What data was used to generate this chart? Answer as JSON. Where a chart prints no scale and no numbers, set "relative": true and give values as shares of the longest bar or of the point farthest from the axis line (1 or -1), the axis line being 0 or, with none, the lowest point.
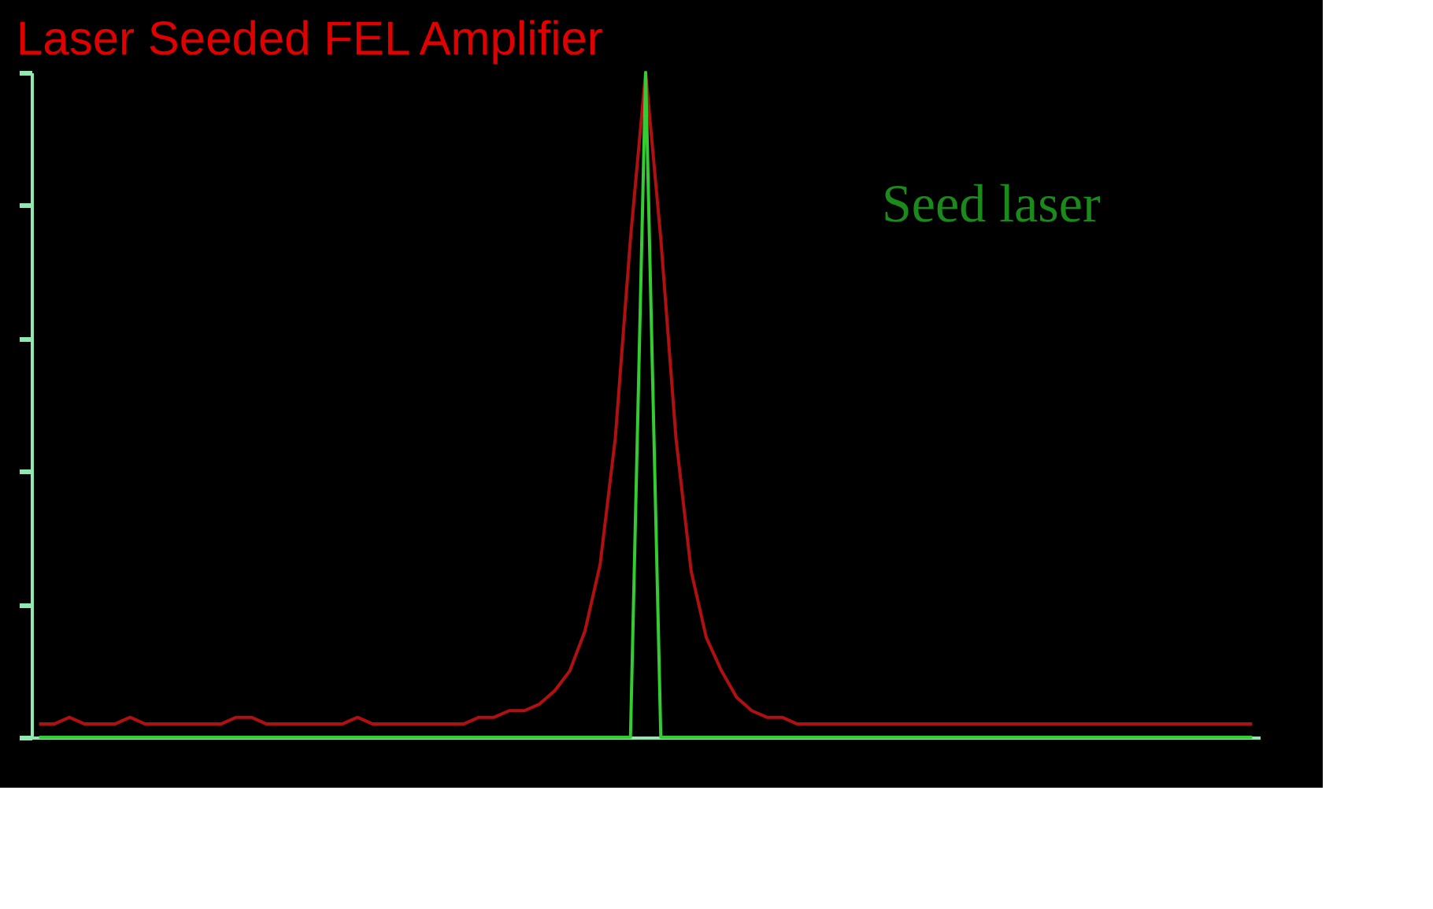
{
  "chart_data": {
    "type": "line",
    "title": "Laser Seeded FEL Amplifier",
    "relative": true,
    "categories": [
      null,
      null,
      null,
      null,
      null,
      null,
      null,
      null,
      null,
      null,
      null,
      null,
      null,
      null,
      null,
      null,
      null,
      null,
      null,
      null,
      null,
      null,
      null,
      null,
      null,
      null,
      null,
      null,
      null,
      null,
      null,
      null,
      null,
      null,
      null,
      null,
      null,
      null,
      null,
      null,
      null,
      null,
      null,
      null,
      null,
      null,
      null,
      null,
      null,
      null,
      null,
      null,
      null,
      null,
      null,
      null,
      null,
      null,
      null,
      null,
      null,
      null,
      null,
      null,
      null,
      null,
      null,
      null,
      null,
      null,
      null,
      null,
      null,
      null,
      null,
      null,
      null,
      null,
      null,
      null,
      null
    ],
    "series": [
      {
        "color": "#b01010",
        "values": [
          0.02,
          0.02,
          0.03,
          0.02,
          0.02,
          0.02,
          0.03,
          0.02,
          0.02,
          0.02,
          0.02,
          0.02,
          0.02,
          0.03,
          0.03,
          0.02,
          0.02,
          0.02,
          0.02,
          0.02,
          0.02,
          0.03,
          0.02,
          0.02,
          0.02,
          0.02,
          0.02,
          0.02,
          0.02,
          0.03,
          0.03,
          0.04,
          0.04,
          0.05,
          0.07,
          0.1,
          0.16,
          0.26,
          0.45,
          0.75,
          1.0,
          0.75,
          0.45,
          0.25,
          0.15,
          0.1,
          0.06,
          0.04,
          0.03,
          0.03,
          0.02,
          0.02,
          0.02,
          0.02,
          0.02,
          0.02,
          0.02,
          0.02,
          0.02,
          0.02,
          0.02,
          0.02,
          0.02,
          0.02,
          0.02,
          0.02,
          0.02,
          0.02,
          0.02,
          0.02,
          0.02,
          0.02,
          0.02,
          0.02,
          0.02,
          0.02,
          0.02,
          0.02,
          0.02,
          0.02,
          0.02
        ]
      },
      {
        "name": "Seed laser",
        "color": "#33cc33",
        "values": [
          0,
          0,
          0,
          0,
          0,
          0,
          0,
          0,
          0,
          0,
          0,
          0,
          0,
          0,
          0,
          0,
          0,
          0,
          0,
          0,
          0,
          0,
          0,
          0,
          0,
          0,
          0,
          0,
          0,
          0,
          0,
          0,
          0,
          0,
          0,
          0,
          0,
          0,
          0,
          0,
          1.0,
          0,
          0,
          0,
          0,
          0,
          0,
          0,
          0,
          0,
          0,
          0,
          0,
          0,
          0,
          0,
          0,
          0,
          0,
          0,
          0,
          0,
          0,
          0,
          0,
          0,
          0,
          0,
          0,
          0,
          0,
          0,
          0,
          0,
          0,
          0,
          0,
          0,
          0,
          0,
          0
        ]
      }
    ]
  }
}
